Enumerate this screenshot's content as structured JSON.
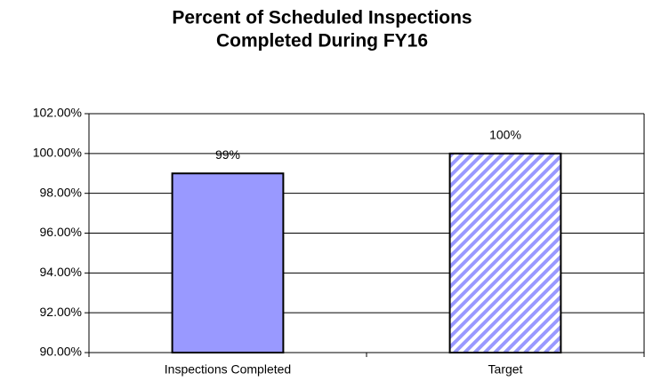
{
  "chart_data": {
    "type": "bar",
    "title": [
      "Percent of Scheduled Inspections",
      "Completed During FY16"
    ],
    "categories": [
      "Inspections Completed",
      "Target"
    ],
    "values": [
      99,
      100
    ],
    "value_labels": [
      "99%",
      "100%"
    ],
    "colors": [
      "#9999ff",
      "#9999ff"
    ],
    "patterns": [
      "solid",
      "hatch"
    ],
    "ylim": [
      90,
      102
    ],
    "yticks": [
      {
        "value": 90,
        "label": "90.00%"
      },
      {
        "value": 92,
        "label": "92.00%"
      },
      {
        "value": 94,
        "label": "94.00%"
      },
      {
        "value": 96,
        "label": "96.00%"
      },
      {
        "value": 98,
        "label": "98.00%"
      },
      {
        "value": 100,
        "label": "100.00%"
      },
      {
        "value": 102,
        "label": "102.00%"
      }
    ],
    "grid": true
  }
}
